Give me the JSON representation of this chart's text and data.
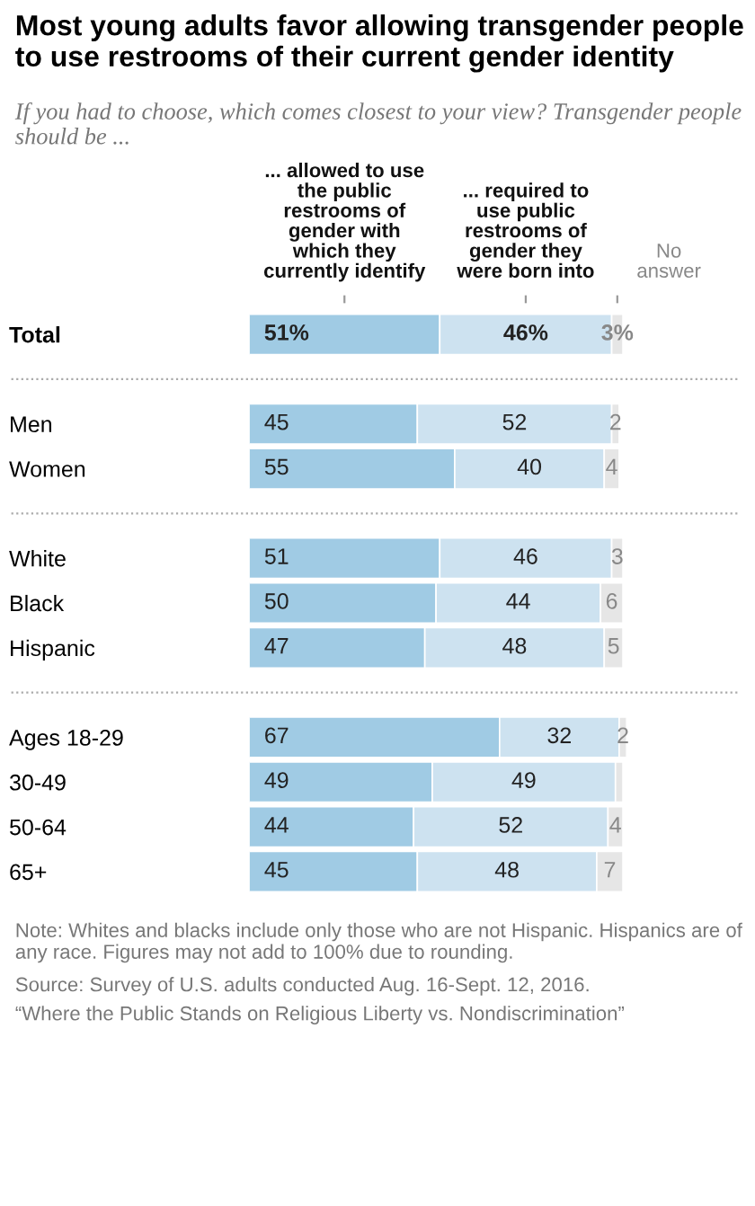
{
  "chart_data": {
    "type": "bar",
    "orientation": "horizontal",
    "stacked": true,
    "title": "Most young adults favor allowing transgender people to use restrooms of their current gender identity",
    "subtitle": "If you had to choose, which comes closest to your view? Transgender people should be ...",
    "categories": [
      "Total",
      null,
      "Men",
      "Women",
      null,
      "White",
      "Black",
      "Hispanic",
      null,
      "Ages 18-29",
      "30-49",
      "50-64",
      "65+"
    ],
    "series": [
      {
        "name": "... allowed to use the public restrooms of gender with which they currently identify",
        "color": "#a0cbe4",
        "values": [
          51,
          null,
          45,
          55,
          null,
          51,
          50,
          47,
          null,
          67,
          49,
          44,
          45
        ],
        "value_labels": [
          "51%",
          null,
          "45",
          "55",
          null,
          "51",
          "50",
          "47",
          null,
          "67",
          "49",
          "44",
          "45"
        ]
      },
      {
        "name": "... required to use public restrooms of gender they were born into",
        "color": "#cde2f0",
        "values": [
          46,
          null,
          52,
          40,
          null,
          46,
          44,
          48,
          null,
          32,
          49,
          52,
          48
        ],
        "value_labels": [
          "46%",
          null,
          "52",
          "40",
          null,
          "46",
          "44",
          "48",
          null,
          "32",
          "49",
          "52",
          "48"
        ]
      },
      {
        "name": "No answer",
        "color": "#e6e6e6",
        "values": [
          3,
          null,
          2,
          4,
          null,
          3,
          6,
          5,
          null,
          2,
          2,
          4,
          7
        ],
        "value_labels": [
          "3%",
          null,
          "2",
          "4",
          null,
          "3",
          "6",
          "5",
          null,
          "2",
          null,
          "4",
          "7"
        ]
      }
    ],
    "legend": "top",
    "annotations": [
      "Note: Whites and blacks include only those who are not Hispanic. Hispanics are of any race. Figures may not add to 100% due to rounding.",
      "Source: Survey of U.S. adults conducted Aug. 16-Sept. 12, 2016.",
      "“Where the Public Stands on Religious Liberty vs. Nondiscrimination”"
    ]
  }
}
